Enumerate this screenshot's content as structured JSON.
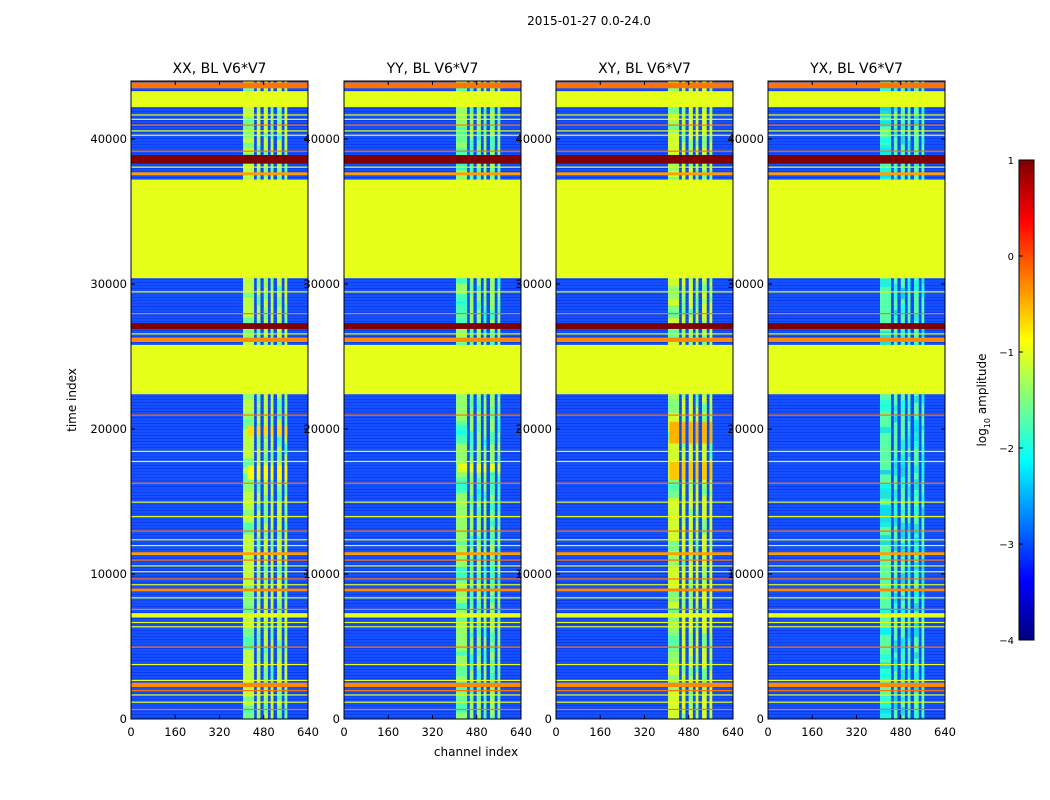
{
  "suptitle": "2015-01-27 0.0-24.0",
  "colors": {
    "axis": "#000000",
    "background": "#ffffff",
    "flag_fill": "#99ff55",
    "noise_base": "#1450ff",
    "noise_dark": "#0018c8",
    "colormap_jet": [
      "#00007f",
      "#0000ff",
      "#007fff",
      "#00ffff",
      "#7fff7f",
      "#ffff00",
      "#ff7f00",
      "#ff0000",
      "#7f0000"
    ]
  },
  "chart_data": {
    "type": "heatmap",
    "title": "2015-01-27 0.0-24.0",
    "xlabel": "channel index",
    "ylabel": "time index",
    "xlim": [
      0,
      640
    ],
    "ylim": [
      0,
      44000
    ],
    "xticks": [
      0,
      160,
      320,
      480,
      640
    ],
    "yticks": [
      0,
      10000,
      20000,
      30000,
      40000
    ],
    "xtick_labels": [
      "0",
      "160",
      "320",
      "480",
      "640"
    ],
    "ytick_labels": [
      "0",
      "10000",
      "20000",
      "30000",
      "40000"
    ],
    "colorbar": {
      "label_main": "log",
      "label_sub": "10",
      "label_rest": " amplitude",
      "range": [
        -4,
        1
      ],
      "ticks": [
        1,
        0,
        -1,
        -2,
        -3,
        -4
      ],
      "tick_labels": [
        "1",
        "0",
        "−1",
        "−2",
        "−3",
        "−4"
      ],
      "placement": "right"
    },
    "panels": [
      {
        "title": "XX, BL V6*V7",
        "band_columns": [
          405,
          445,
          455,
          468,
          480,
          495,
          505,
          515,
          528,
          545,
          555,
          565
        ],
        "band_level": -1.2,
        "hotspots": [
          {
            "y0": 19500,
            "y1": 20200,
            "x0": 420,
            "x1": 590,
            "level": -0.7
          },
          {
            "y0": 16500,
            "y1": 17500,
            "x0": 420,
            "x1": 590,
            "level": -0.9
          }
        ]
      },
      {
        "title": "YY, BL V6*V7",
        "band_columns": [
          405,
          445,
          455,
          468,
          480,
          495,
          505,
          515,
          528,
          545,
          555,
          565
        ],
        "band_level": -1.4,
        "hotspots": [
          {
            "y0": 17000,
            "y1": 17600,
            "x0": 410,
            "x1": 590,
            "level": -1.0
          }
        ]
      },
      {
        "title": "XY, BL V6*V7",
        "band_columns": [
          405,
          445,
          455,
          468,
          480,
          495,
          505,
          515,
          528,
          545,
          555,
          565
        ],
        "band_level": -1.1,
        "hotspots": [
          {
            "y0": 19000,
            "y1": 20500,
            "x0": 410,
            "x1": 590,
            "level": -0.5
          },
          {
            "y0": 16500,
            "y1": 17800,
            "x0": 410,
            "x1": 590,
            "level": -0.6
          }
        ]
      },
      {
        "title": "YX, BL V6*V7",
        "band_columns": [
          405,
          445,
          455,
          468,
          480,
          495,
          505,
          515,
          528,
          545,
          555,
          565
        ],
        "band_level": -1.7,
        "hotspots": []
      }
    ],
    "flagged_rows": [
      {
        "y0": 30400,
        "y1": 37200,
        "level": -1.0
      },
      {
        "y0": 22400,
        "y1": 25800,
        "level": -1.0
      },
      {
        "y0": 38300,
        "y1": 38900,
        "level": 1.0
      },
      {
        "y0": 26900,
        "y1": 27300,
        "level": 1.0
      },
      {
        "y0": 42200,
        "y1": 43300,
        "level": -1.0
      },
      {
        "y0": 43500,
        "y1": 43900,
        "level": -0.2
      },
      {
        "y0": 26000,
        "y1": 26300,
        "level": -0.3
      },
      {
        "y0": 37500,
        "y1": 37700,
        "level": -0.4
      },
      {
        "y0": 8800,
        "y1": 9000,
        "level": -0.3
      },
      {
        "y0": 2200,
        "y1": 2500,
        "level": -0.3
      },
      {
        "y0": 11300,
        "y1": 11500,
        "level": -0.4
      },
      {
        "y0": 7000,
        "y1": 7300,
        "level": -1.0
      }
    ],
    "thin_flag_rows": [
      700,
      1200,
      1700,
      2000,
      2700,
      3800,
      5000,
      6400,
      6700,
      7600,
      8400,
      9300,
      9700,
      10200,
      10600,
      11000,
      12000,
      12400,
      13000,
      14000,
      15000,
      16300,
      17800,
      18500,
      21000,
      23000,
      26600,
      28000,
      29500,
      38100,
      39200,
      40300,
      40600,
      41000,
      41400,
      41700
    ]
  }
}
